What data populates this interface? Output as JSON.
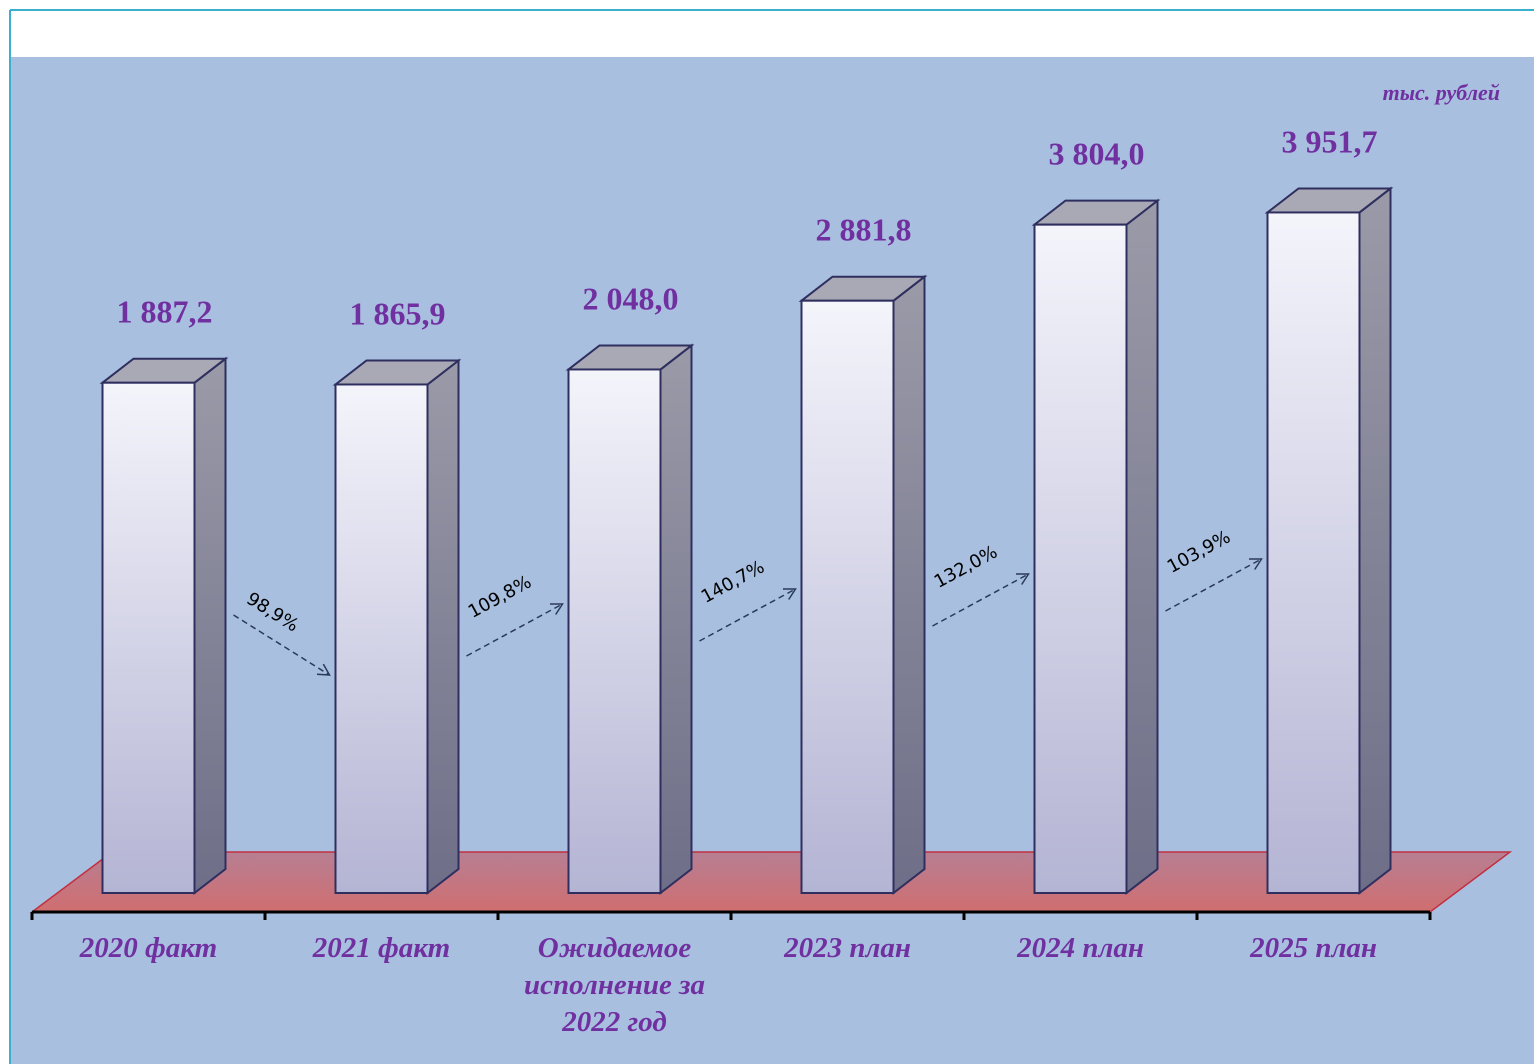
{
  "chart_data": {
    "type": "bar3d",
    "unit_label": "тыс. рублей",
    "categories": [
      "2020 факт",
      "2021 факт",
      "Ожидаемое исполнение за 2022 год",
      "2023 план",
      "2024 план",
      "2025 план"
    ],
    "values": [
      1887.2,
      1865.9,
      2048.0,
      2881.8,
      3804.0,
      3951.7
    ],
    "value_labels": [
      "1 887,2",
      "1 865,9",
      "2 048,0",
      "2 881,8",
      "3 804,0",
      "3 951,7"
    ],
    "color": "#7030a0",
    "ylim": [
      -4300,
      5000
    ],
    "growth": {
      "values": [
        98.9,
        109.8,
        140.7,
        132.0,
        103.9
      ],
      "value_labels": [
        "98,9%",
        "109,8%",
        "140,7%",
        "132,0%",
        "103,9%"
      ]
    }
  }
}
